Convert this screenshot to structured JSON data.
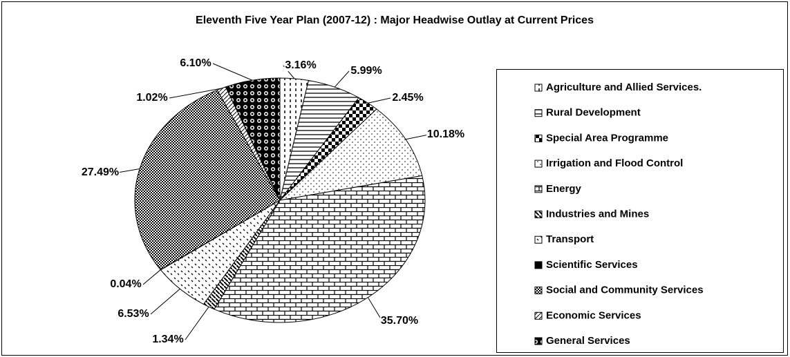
{
  "chart_data": {
    "type": "pie",
    "title": "Eleventh  Five Year Plan (2007-12) : Major Headwise Outlay at Current Prices",
    "categories": [
      "Agriculture and Allied Services.",
      "Rural Development",
      "Special Area Programme",
      "Irrigation and Flood Control",
      "Energy",
      "Industries and Mines",
      "Transport",
      "Scientific Services",
      "Social and Community Services",
      "Economic Services",
      "General Services"
    ],
    "values": [
      3.16,
      5.99,
      2.45,
      10.18,
      35.7,
      1.34,
      6.53,
      0.04,
      27.49,
      1.02,
      6.1
    ],
    "value_labels": [
      "3.16%",
      "5.99%",
      "2.45%",
      "10.18%",
      "35.70%",
      "1.34%",
      "6.53%",
      "0.04%",
      "27.49%",
      "1.02%",
      "6.10%"
    ],
    "legend": "right"
  }
}
